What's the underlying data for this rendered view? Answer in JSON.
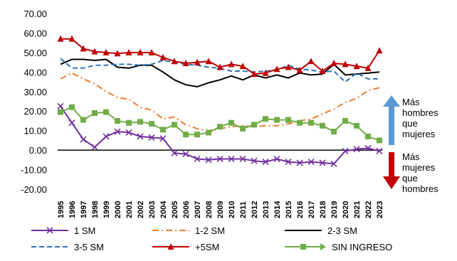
{
  "chart_data": {
    "type": "line",
    "title": "",
    "xlabel": "",
    "ylabel": "",
    "ylim": [
      -20,
      70
    ],
    "yticks": [
      "70.00",
      "60.00",
      "50.00",
      "40.00",
      "30.00",
      "20.00",
      "10.00",
      "0.00",
      "-10.00",
      "-20.00"
    ],
    "categories": [
      "1995",
      "1996",
      "1997",
      "1998",
      "1999",
      "2000",
      "2001",
      "2002",
      "2003",
      "2004",
      "2005",
      "2006",
      "2007",
      "2008",
      "2009",
      "2010",
      "2011",
      "2012",
      "2013",
      "2014",
      "2015",
      "2016",
      "2017",
      "2018",
      "2019",
      "2020",
      "2021",
      "2022",
      "2023"
    ],
    "grid": false,
    "legend": "bottom",
    "series": [
      {
        "name": "1 SM",
        "color": "#7030a0",
        "values": [
          22.5,
          14,
          5.5,
          1.5,
          7,
          9.5,
          9,
          7,
          6.5,
          6,
          -1.5,
          -2,
          -4.5,
          -5,
          -4.5,
          -4.5,
          -4.5,
          -5.5,
          -6,
          -4.5,
          -6,
          -6.5,
          -6,
          -6.5,
          -7,
          -0.5,
          0.5,
          1,
          -0.5
        ]
      },
      {
        "name": "1-2 SM",
        "color": "#ed7d31",
        "values": [
          36.5,
          39.5,
          36.5,
          34,
          30,
          27,
          26,
          22,
          20.5,
          16,
          17,
          13,
          11,
          10,
          11,
          12,
          12.5,
          12,
          12.5,
          12.5,
          13.5,
          15,
          16,
          18.5,
          21,
          24.5,
          26.5,
          30.5,
          32
        ]
      },
      {
        "name": "2-3 SM",
        "color": "#000000",
        "values": [
          44,
          46.5,
          46.5,
          46,
          46.5,
          42.5,
          42,
          43.5,
          43.5,
          40,
          36,
          33.5,
          32.5,
          34.5,
          36,
          38,
          36,
          38.5,
          37,
          38.5,
          37,
          39.5,
          38.5,
          39,
          44,
          38.5,
          39,
          39.5,
          40
        ]
      },
      {
        "name": "3-5 SM",
        "color": "#2e75b6",
        "values": [
          47,
          42,
          42,
          43.5,
          43.5,
          44,
          44,
          43.5,
          44,
          46,
          45,
          44,
          43.5,
          42.5,
          42,
          40.5,
          40.5,
          40,
          40.5,
          41,
          43.5,
          41.5,
          41,
          40,
          40.5,
          35,
          39.5,
          36.5,
          36.5
        ]
      },
      {
        "name": "+5SM",
        "color": "#c00000",
        "values": [
          57,
          57,
          52,
          50.5,
          50,
          49.5,
          50,
          50,
          50,
          47.5,
          45.5,
          44.5,
          45,
          45.5,
          42.5,
          44,
          43,
          39,
          39.5,
          41.5,
          42.5,
          41,
          45.5,
          40.5,
          44.5,
          44,
          43,
          42,
          51
        ]
      },
      {
        "name": "SIN INGRESO",
        "color": "#70ad47",
        "values": [
          19.5,
          22,
          15.5,
          19,
          19.5,
          15,
          14,
          14.5,
          13.5,
          10.5,
          13,
          8,
          8,
          9,
          12,
          14,
          11,
          13,
          16,
          15.5,
          15.5,
          14,
          14,
          12.5,
          9.5,
          15,
          12.5,
          7,
          5
        ]
      }
    ],
    "annotations": {
      "up_text": [
        "Más",
        "hombres",
        "que",
        "mujeres"
      ],
      "down_text": [
        "Más",
        "mujeres",
        "que",
        "hombres"
      ],
      "up_arrow_color": "#5b9bd5",
      "down_arrow_color": "#c00000"
    }
  }
}
